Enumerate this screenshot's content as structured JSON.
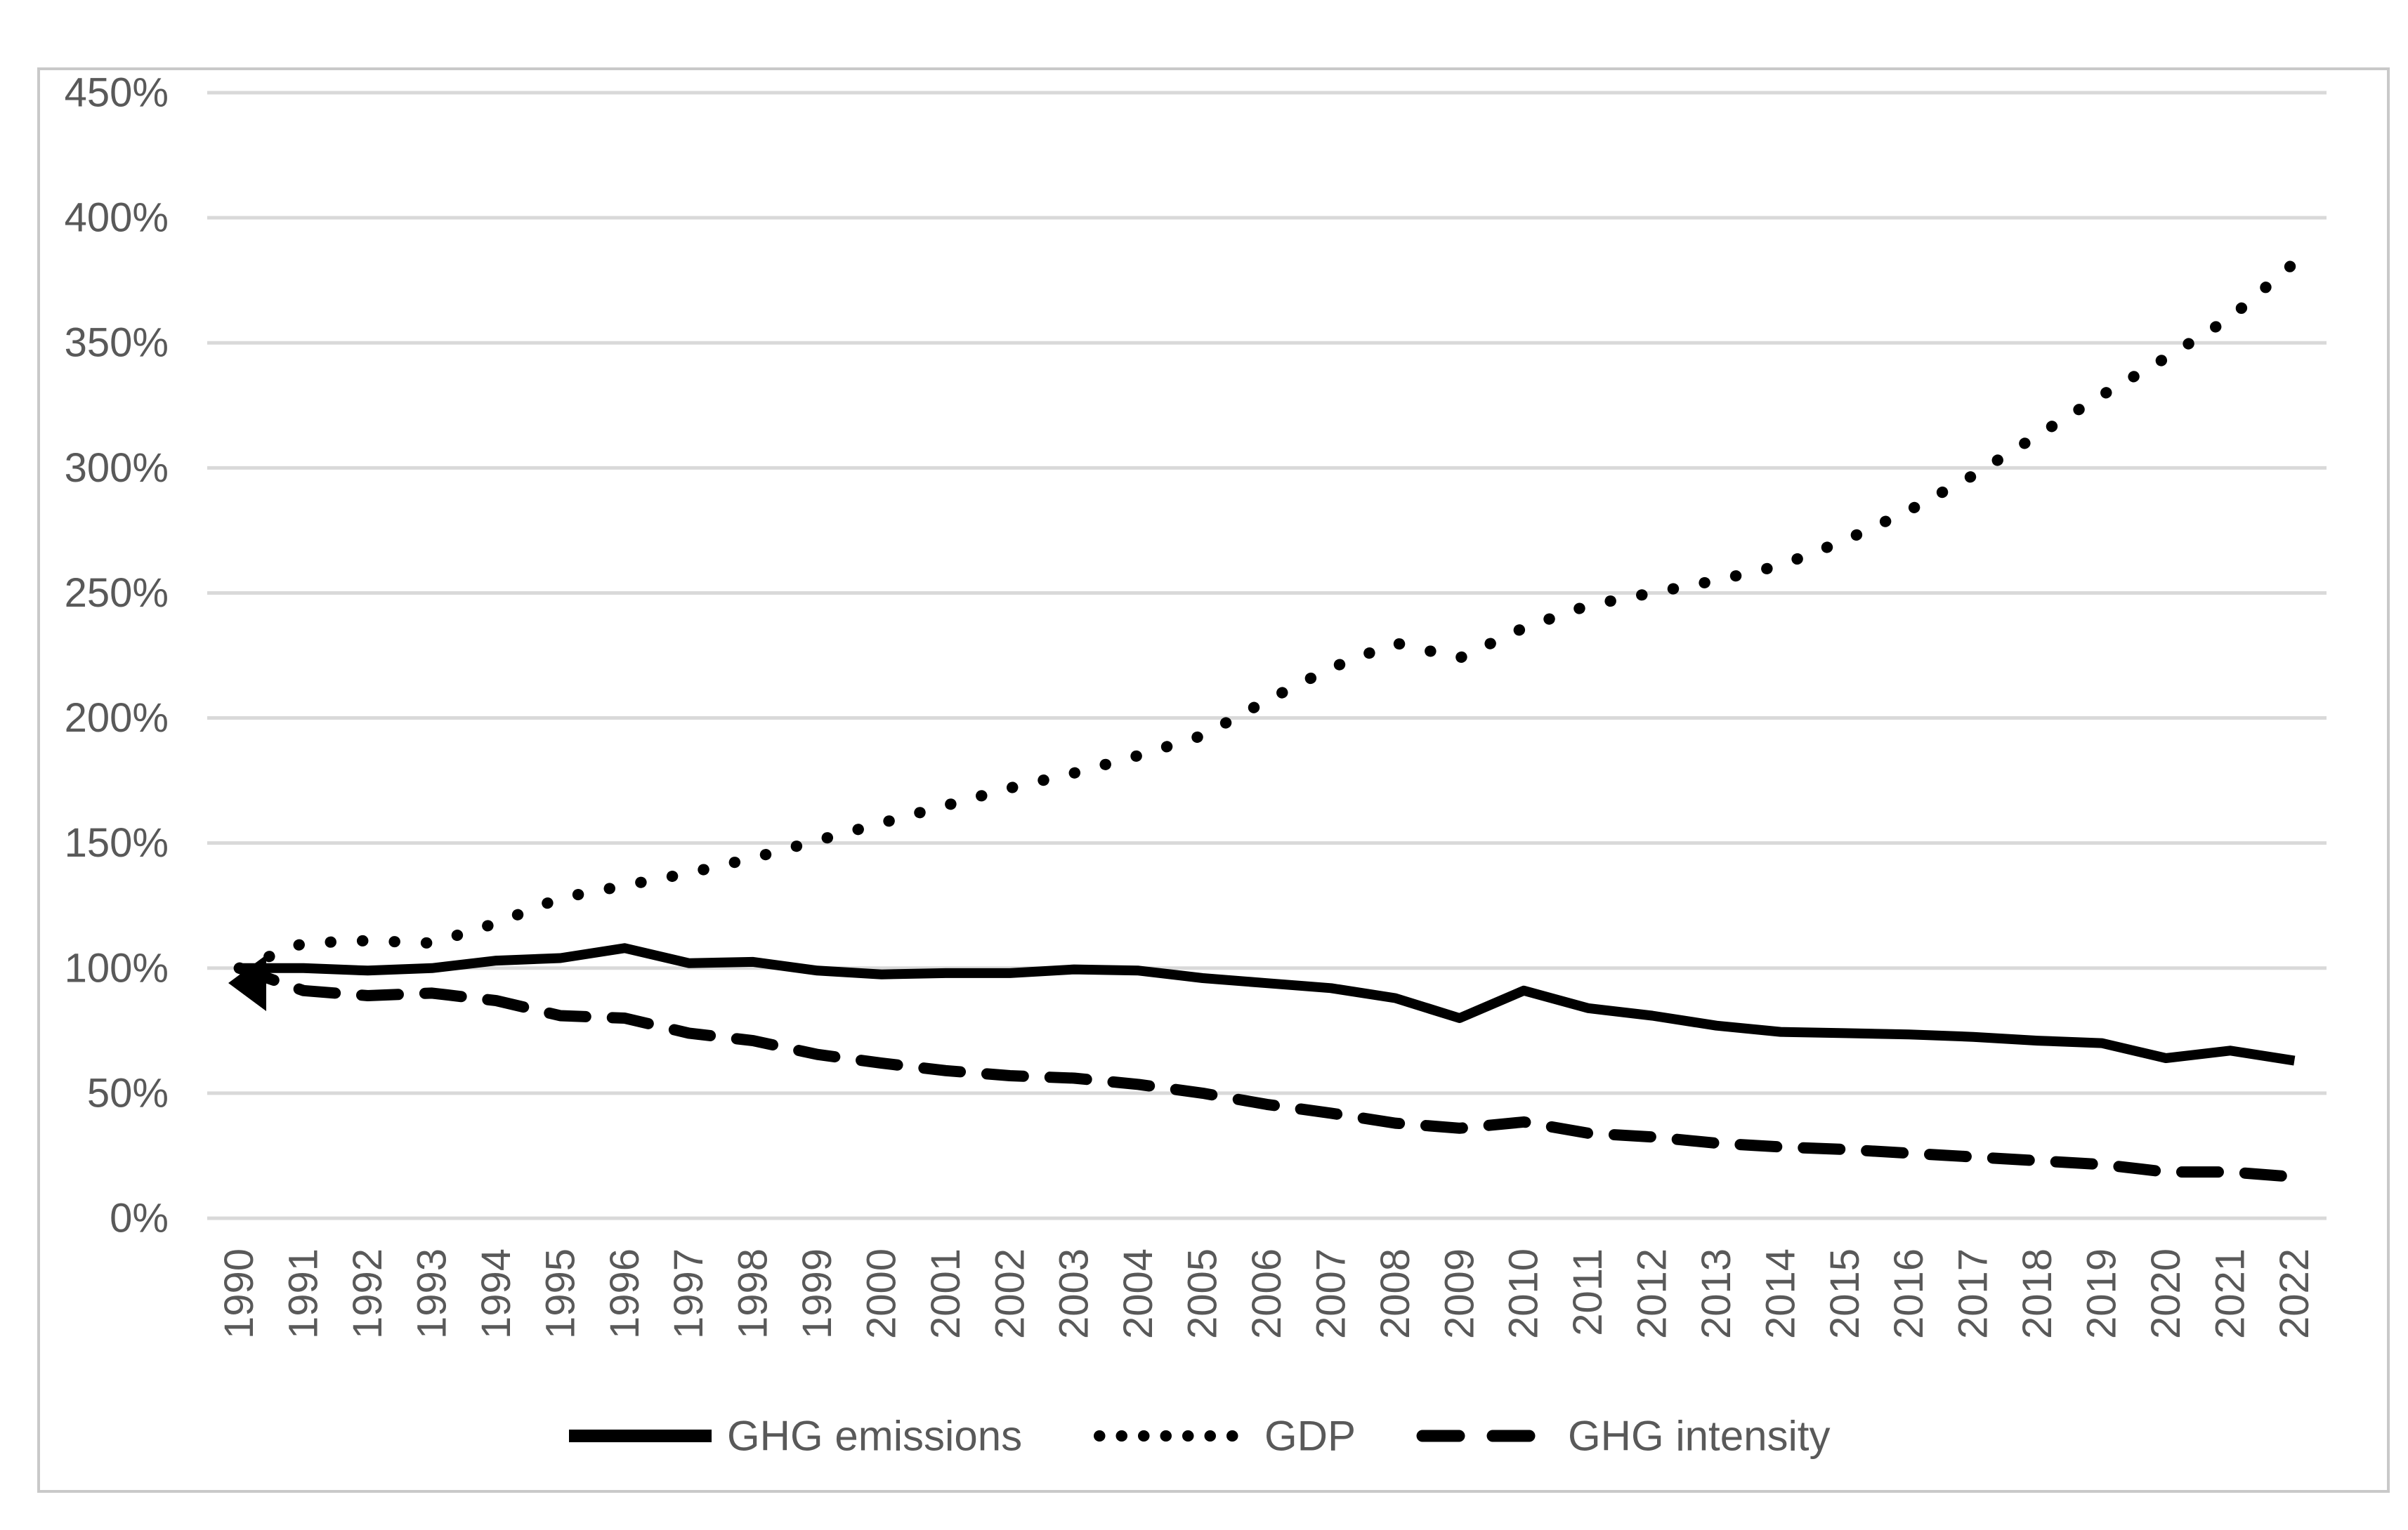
{
  "chart_data": {
    "type": "line",
    "title": "",
    "xlabel": "",
    "ylabel": "",
    "ylim": [
      0,
      450
    ],
    "ytick_step": 50,
    "ytick_labels": [
      "0%",
      "50%",
      "100%",
      "150%",
      "200%",
      "250%",
      "300%",
      "350%",
      "400%",
      "450%"
    ],
    "grid": "horizontal",
    "legend_position": "bottom",
    "x": [
      1990,
      1991,
      1992,
      1993,
      1994,
      1995,
      1996,
      1997,
      1998,
      1999,
      2000,
      2001,
      2002,
      2003,
      2004,
      2005,
      2006,
      2007,
      2008,
      2009,
      2010,
      2011,
      2012,
      2013,
      2014,
      2015,
      2016,
      2017,
      2018,
      2019,
      2020,
      2021,
      2022
    ],
    "series": [
      {
        "name": "GHG emissions",
        "style": "solid",
        "values": [
          100,
          100,
          99,
          100,
          103,
          104,
          108,
          102,
          102.5,
          99,
          97.5,
          98,
          98,
          99.5,
          99,
          96,
          94,
          92,
          88,
          80,
          91,
          84,
          81,
          77,
          74.5,
          74,
          73.5,
          72.5,
          71,
          70,
          64,
          67,
          63
        ]
      },
      {
        "name": "GDP",
        "style": "dotted",
        "values": [
          100,
          110,
          111,
          110,
          118,
          128,
          133,
          138,
          144,
          151,
          158,
          165,
          172,
          178,
          185,
          193,
          207,
          220,
          230,
          224,
          236,
          245,
          250,
          255,
          261,
          271,
          283,
          297,
          313,
          329,
          344,
          360,
          382
        ]
      },
      {
        "name": "GHG intensity",
        "style": "dashed",
        "values": [
          100,
          91,
          89,
          90,
          87,
          81,
          80,
          74,
          71,
          65.5,
          62,
          59,
          57,
          56,
          53.5,
          50,
          45.5,
          42,
          38,
          36,
          38.5,
          34,
          32.5,
          30,
          28.5,
          27.5,
          26,
          24.5,
          23,
          21.5,
          18.5,
          18.5,
          16.5
        ]
      }
    ],
    "colors": {
      "line": "#000000",
      "gridline": "#D9D9D9",
      "tick_text": "#595959",
      "legend_text": "#595959",
      "chart_border": "#C9C9C9",
      "background": "#FFFFFF"
    },
    "annotations": [
      {
        "name": "start-arrow",
        "shape": "left-pointing-triangle",
        "at_x": 1990,
        "at_value": 100
      }
    ]
  }
}
